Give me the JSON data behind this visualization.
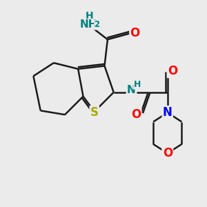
{
  "background_color": "#ebebeb",
  "bond_color": "#1a1a1a",
  "bond_width": 1.8,
  "atom_colors": {
    "N": "#0000ff",
    "NH2_N": "#008080",
    "NH2_H": "#008080",
    "O": "#ff0000",
    "S": "#aaaa00",
    "NH_N": "#008080",
    "NH_H": "#008080"
  },
  "figsize": [
    3.0,
    3.0
  ],
  "dpi": 100
}
